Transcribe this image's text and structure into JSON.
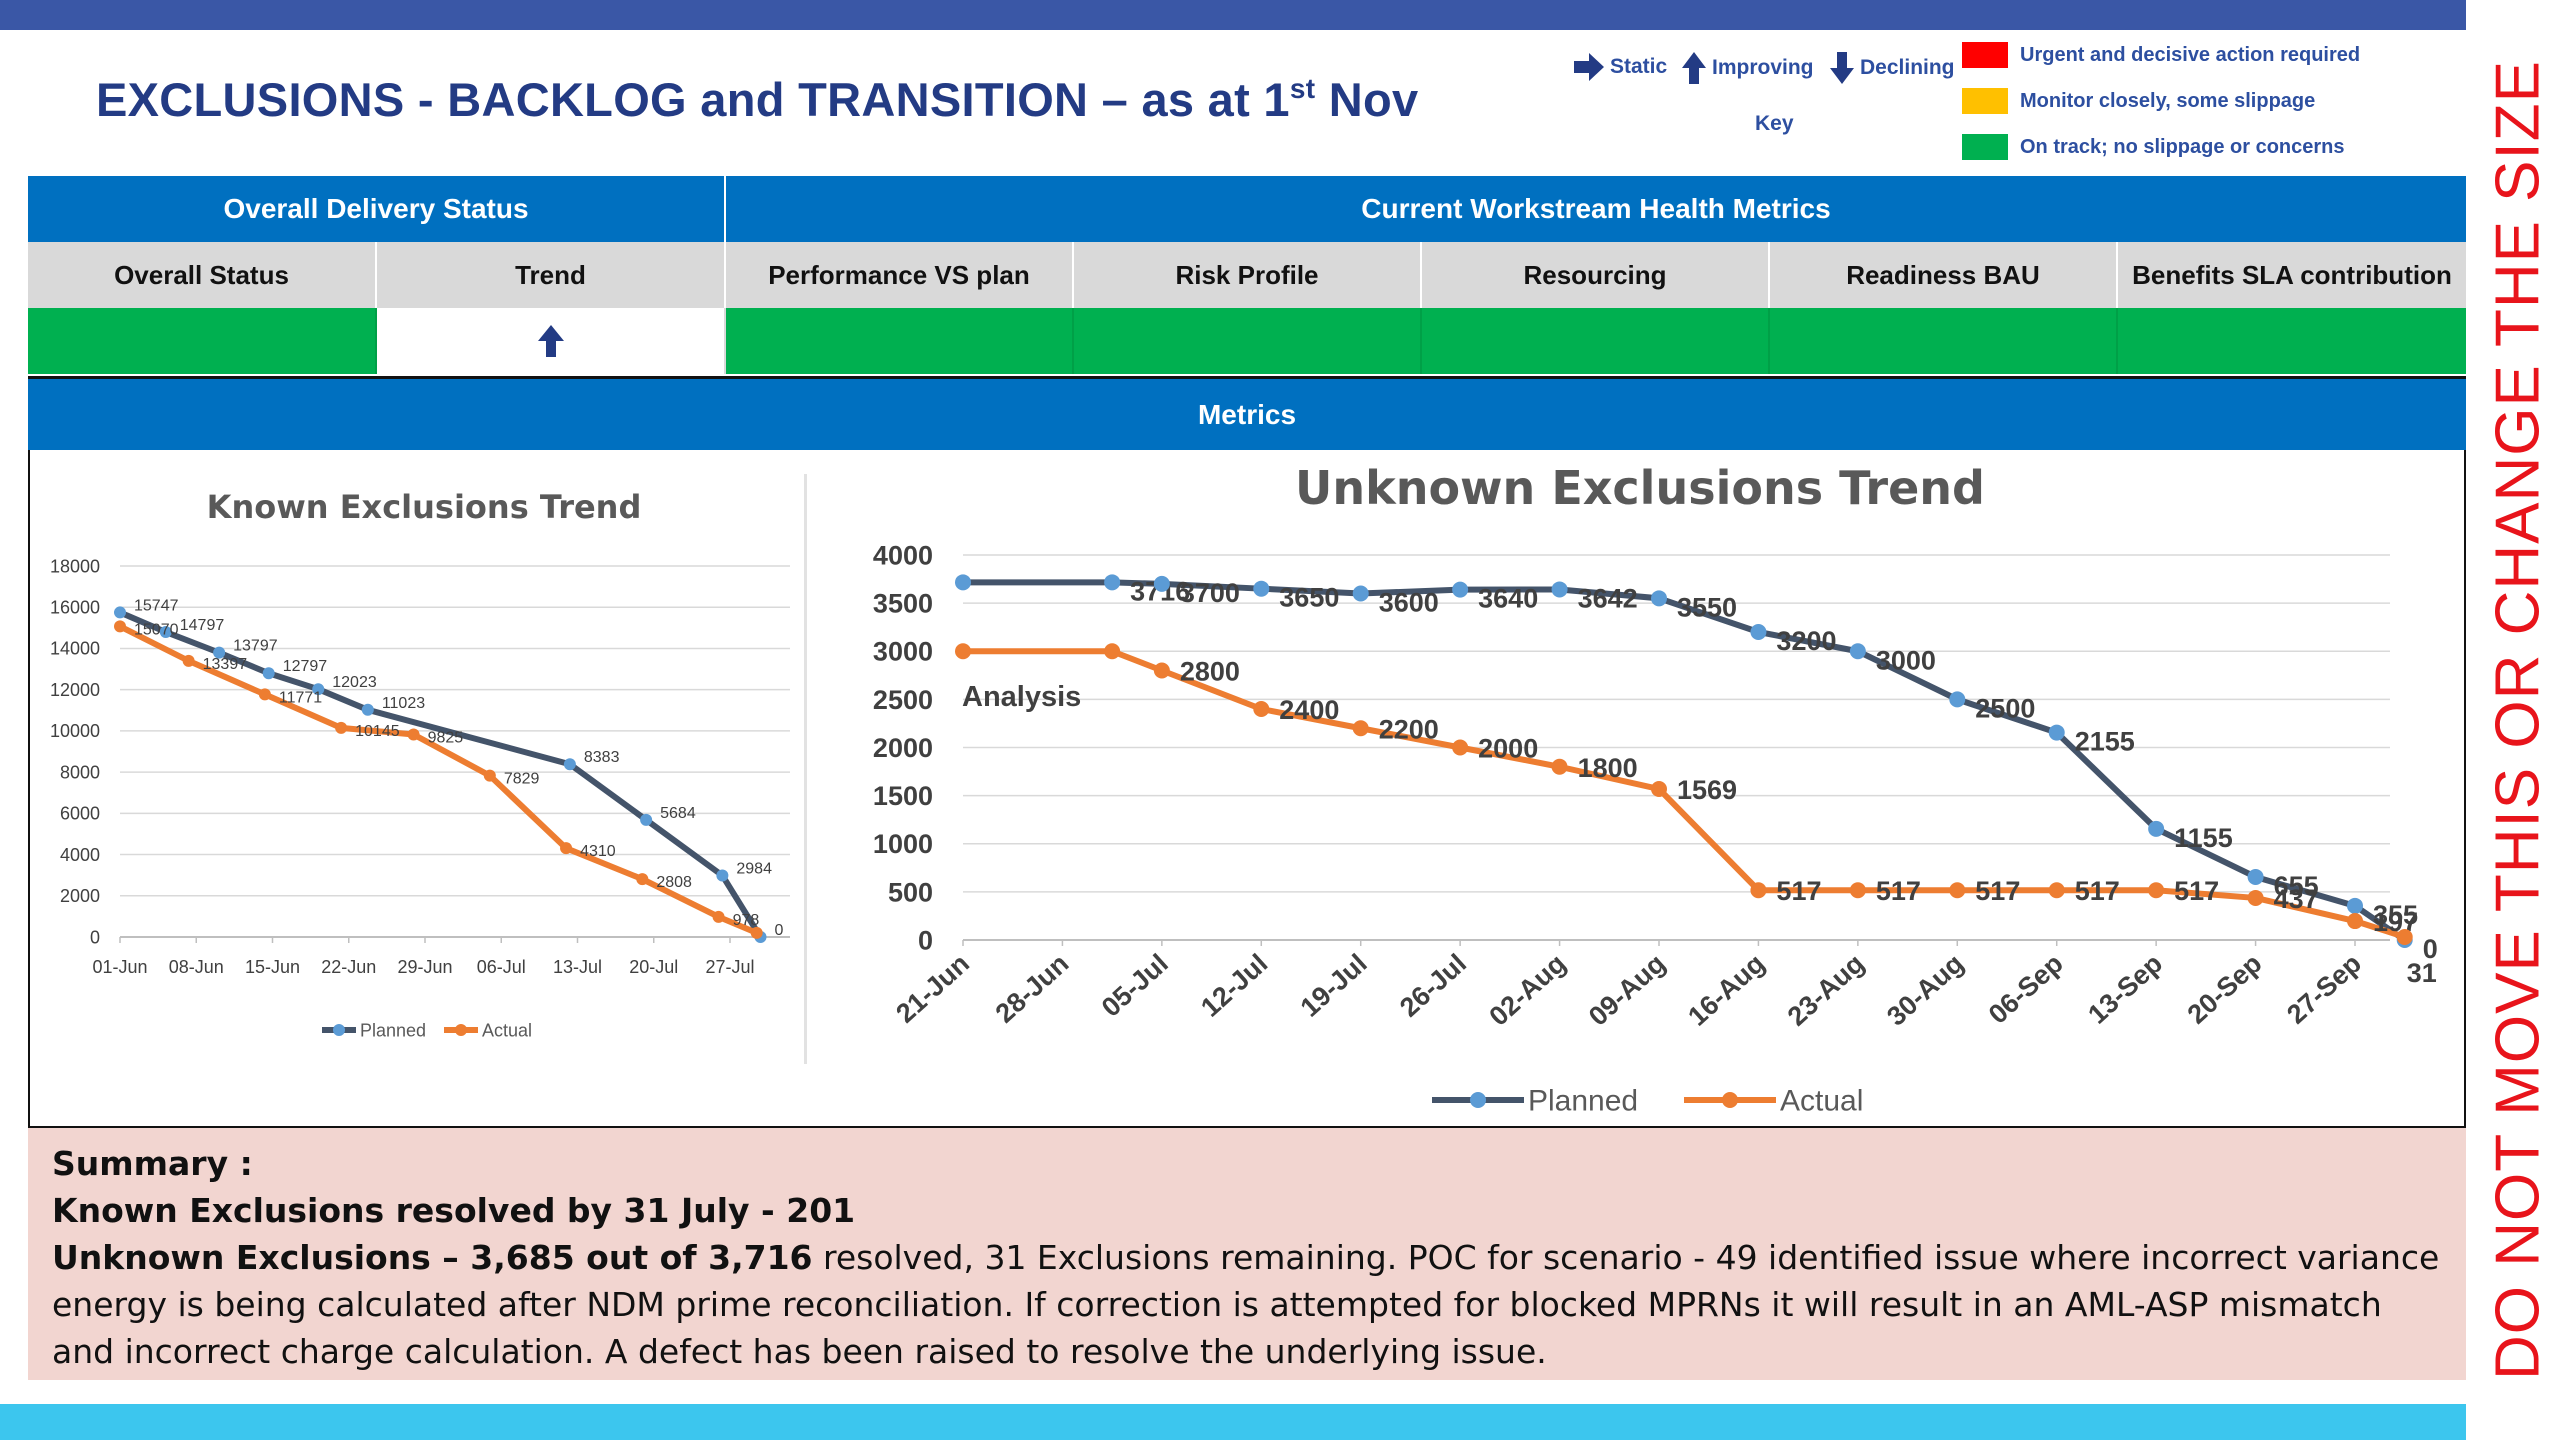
{
  "title": {
    "main": "EXCLUSIONS - BACKLOG and TRANSITION – as at 1",
    "sup": "st",
    "suffix": " Nov"
  },
  "side_note": "DO NOT MOVE THIS OR CHANGE THE SIZE",
  "key": {
    "static": "Static",
    "improving": "Improving",
    "declining": "Declining",
    "label": "Key",
    "legend": [
      {
        "color": "#ff0000",
        "text": "Urgent and decisive action required"
      },
      {
        "color": "#ffc000",
        "text": "Monitor closely, some slippage"
      },
      {
        "color": "#00b050",
        "text": "On track; no slippage or concerns"
      }
    ],
    "arrow_color": "#233b84"
  },
  "status_table": {
    "group1": "Overall Delivery Status",
    "group2": "Current Workstream Health Metrics",
    "columns": [
      "Overall Status",
      "Trend",
      "Performance VS plan",
      "Risk Profile",
      "Resourcing",
      "Readiness BAU",
      "Benefits SLA contribution"
    ],
    "trend_icon": "up-arrow-icon",
    "status_color": "#00b050"
  },
  "metrics_header": "Metrics",
  "chart_data": [
    {
      "type": "line",
      "title": "Known Exclusions Trend",
      "categories": [
        "01-Jun",
        "08-Jun",
        "15-Jun",
        "22-Jun",
        "29-Jun",
        "06-Jul",
        "13-Jul",
        "20-Jul",
        "27-Jul"
      ],
      "ylim": [
        0,
        18000
      ],
      "yticks": [
        "0",
        "2000",
        "4000",
        "6000",
        "8000",
        "10000",
        "12000",
        "14000",
        "16000",
        "18000"
      ],
      "legend_position": "bottom",
      "grid": true,
      "series": [
        {
          "name": "Planned",
          "color": "#44546a",
          "points": [
            {
              "x": 0,
              "y": 15747,
              "label": "15747"
            },
            {
              "x": 0.6,
              "y": 14797,
              "label": "14797"
            },
            {
              "x": 1.3,
              "y": 13797,
              "label": "13797"
            },
            {
              "x": 1.95,
              "y": 12797,
              "label": "12797"
            },
            {
              "x": 2.6,
              "y": 12023,
              "label": "12023"
            },
            {
              "x": 3.25,
              "y": 11023,
              "label": "11023"
            },
            {
              "x": 5.9,
              "y": 8383,
              "label": "8383"
            },
            {
              "x": 6.9,
              "y": 5684,
              "label": "5684"
            },
            {
              "x": 7.9,
              "y": 2984,
              "label": "2984"
            },
            {
              "x": 8.4,
              "y": 0,
              "label": "0"
            }
          ]
        },
        {
          "name": "Actual",
          "color": "#ed7d31",
          "points": [
            {
              "x": 0,
              "y": 15070,
              "label": "15070"
            },
            {
              "x": 0.9,
              "y": 13397,
              "label": "13397"
            },
            {
              "x": 1.9,
              "y": 11771,
              "label": "11771"
            },
            {
              "x": 2.9,
              "y": 10145,
              "label": "10145"
            },
            {
              "x": 3.85,
              "y": 9825,
              "label": "9825"
            },
            {
              "x": 4.85,
              "y": 7829,
              "label": "7829"
            },
            {
              "x": 5.85,
              "y": 4310,
              "label": "4310"
            },
            {
              "x": 6.85,
              "y": 2808,
              "label": "2808"
            },
            {
              "x": 7.85,
              "y": 978,
              "label": "978"
            },
            {
              "x": 8.35,
              "y": 201,
              "label": ""
            }
          ]
        }
      ]
    },
    {
      "type": "line",
      "title": "Unknown Exclusions Trend",
      "categories": [
        "21-Jun",
        "28-Jun",
        "05-Jul",
        "12-Jul",
        "19-Jul",
        "26-Jul",
        "02-Aug",
        "09-Aug",
        "16-Aug",
        "23-Aug",
        "30-Aug",
        "06-Sep",
        "13-Sep",
        "20-Sep",
        "27-Sep"
      ],
      "ylim": [
        0,
        4000
      ],
      "yticks": [
        "0",
        "500",
        "1000",
        "1500",
        "2000",
        "2500",
        "3000",
        "3500",
        "4000"
      ],
      "legend_position": "bottom",
      "grid": true,
      "annotation": "Analysis",
      "extra_label": "31",
      "series": [
        {
          "name": "Planned",
          "color": "#44546a",
          "points": [
            {
              "x": 0,
              "y": 3716,
              "label": ""
            },
            {
              "x": 1.5,
              "y": 3716,
              "label": "3716"
            },
            {
              "x": 2,
              "y": 3700,
              "label": "3700"
            },
            {
              "x": 3,
              "y": 3650,
              "label": "3650"
            },
            {
              "x": 4,
              "y": 3600,
              "label": "3600"
            },
            {
              "x": 5,
              "y": 3640,
              "label": "3640"
            },
            {
              "x": 6,
              "y": 3642,
              "label": "3642"
            },
            {
              "x": 7,
              "y": 3550,
              "label": "3550"
            },
            {
              "x": 8,
              "y": 3200,
              "label": "3200"
            },
            {
              "x": 9,
              "y": 3000,
              "label": "3000"
            },
            {
              "x": 10,
              "y": 2500,
              "label": "2500"
            },
            {
              "x": 11,
              "y": 2155,
              "label": "2155"
            },
            {
              "x": 12,
              "y": 1155,
              "label": "1155"
            },
            {
              "x": 13,
              "y": 655,
              "label": "655"
            },
            {
              "x": 14,
              "y": 355,
              "label": "355"
            },
            {
              "x": 14.5,
              "y": 0,
              "label": "0"
            }
          ]
        },
        {
          "name": "Actual",
          "color": "#ed7d31",
          "points": [
            {
              "x": 0,
              "y": 3000,
              "label": ""
            },
            {
              "x": 1.5,
              "y": 3000,
              "label": ""
            },
            {
              "x": 2,
              "y": 2800,
              "label": "2800"
            },
            {
              "x": 3,
              "y": 2400,
              "label": "2400"
            },
            {
              "x": 4,
              "y": 2200,
              "label": "2200"
            },
            {
              "x": 5,
              "y": 2000,
              "label": "2000"
            },
            {
              "x": 6,
              "y": 1800,
              "label": "1800"
            },
            {
              "x": 7,
              "y": 1569,
              "label": "1569"
            },
            {
              "x": 8,
              "y": 517,
              "label": "517"
            },
            {
              "x": 9,
              "y": 517,
              "label": "517"
            },
            {
              "x": 10,
              "y": 517,
              "label": "517"
            },
            {
              "x": 11,
              "y": 517,
              "label": "517"
            },
            {
              "x": 12,
              "y": 517,
              "label": "517"
            },
            {
              "x": 13,
              "y": 437,
              "label": "437"
            },
            {
              "x": 14,
              "y": 197,
              "label": "197"
            },
            {
              "x": 14.5,
              "y": 31,
              "label": ""
            }
          ]
        }
      ]
    }
  ],
  "summary": {
    "heading": "Summary :",
    "known_line": "Known Exclusions resolved by 31 July  - 201",
    "unknown_bold": "Unknown Exclusions – 3,685 out of 3,716",
    "unknown_rest": "  resolved, 31 Exclusions remaining.  POC for scenario - 49  identified issue where incorrect variance energy is being calculated after NDM prime reconciliation.  If correction is attempted for blocked MPRNs it will result in an AML-ASP mismatch and incorrect charge calculation. A defect has been raised to resolve the underlying issue."
  }
}
